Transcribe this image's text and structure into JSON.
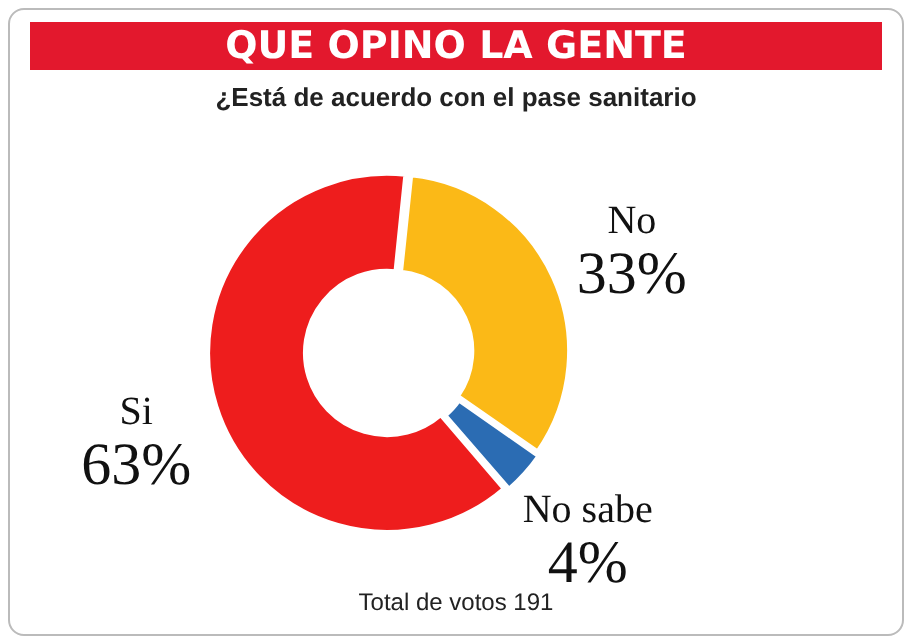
{
  "chart_data": {
    "type": "donut",
    "title": "QUE OPINO LA GENTE",
    "subtitle": "¿Está de acuerdo con el pase sanitario",
    "categories": [
      "No",
      "No sabe",
      "Si"
    ],
    "values": [
      33,
      4,
      63
    ],
    "value_labels": [
      "33%",
      "4%",
      "63%"
    ],
    "colors": [
      "#fbb917",
      "#2b6cb3",
      "#ee1d1d"
    ],
    "annotations": [
      "Total de votos 191"
    ],
    "legend": false
  }
}
